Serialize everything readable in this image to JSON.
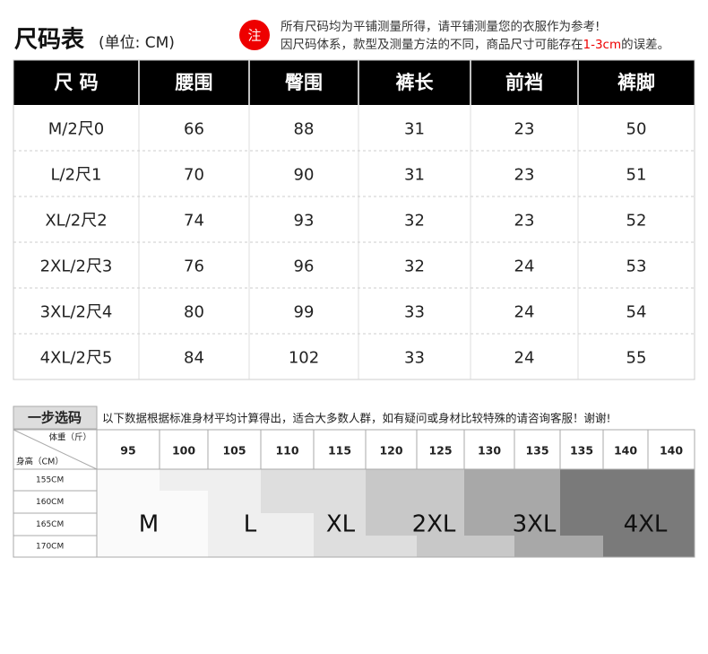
{
  "header": {
    "title": "尺码表",
    "unit": "(单位: CM)",
    "note_mark": "注",
    "note_line1": "所有尺码均为平铺测量所得，请平铺测量您的衣服作为参考!",
    "note_line2": [
      "因尺码体系，款型及测量方法的不同，商品尺寸可能存在",
      "1-3cm",
      "的误差。"
    ]
  },
  "table": {
    "columns": [
      "尺 码",
      "腰围",
      "臀围",
      "裤长",
      "前裆",
      "裤脚"
    ],
    "rows": [
      [
        "M/2尺0",
        66,
        88,
        31,
        23,
        50
      ],
      [
        "L/2尺1",
        70,
        90,
        31,
        23,
        51
      ],
      [
        "XL/2尺2",
        74,
        93,
        32,
        23,
        52
      ],
      [
        "2XL/2尺3",
        76,
        96,
        32,
        24,
        53
      ],
      [
        "3XL/2尺4",
        80,
        99,
        33,
        24,
        54
      ],
      [
        "4XL/2尺5",
        84,
        102,
        33,
        24,
        55
      ]
    ]
  },
  "selector": {
    "title": "一步选码",
    "description": "以下数据根据标准身材平均计算得出，适合大多数人群，如有疑问或身材比较特殊的请咨询客服！谢谢!",
    "weight_label": "体重（斤）",
    "height_label": "身高（CM）",
    "weights": [
      95,
      100,
      105,
      110,
      115,
      120,
      125,
      130,
      135,
      135,
      140,
      140
    ],
    "heights": [
      "155CM",
      "160CM",
      "165CM",
      "170CM"
    ],
    "sizes": [
      "M",
      "L",
      "XL",
      "2XL",
      "3XL",
      "4XL"
    ]
  }
}
